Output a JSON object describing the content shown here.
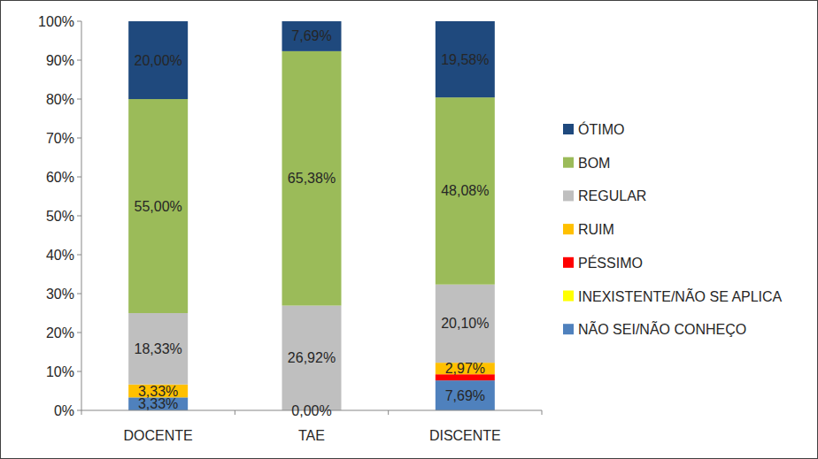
{
  "chart_data": {
    "type": "bar",
    "stacked": true,
    "data_labels": true,
    "legend": "right",
    "grid": false,
    "categories": [
      "DOCENTE",
      "TAE",
      "DISCENTE"
    ],
    "ylim": [
      0,
      100
    ],
    "yticks": [
      {
        "value": 0,
        "label": "0%"
      },
      {
        "value": 10,
        "label": "10%"
      },
      {
        "value": 20,
        "label": "20%"
      },
      {
        "value": 30,
        "label": "30%"
      },
      {
        "value": 40,
        "label": "40%"
      },
      {
        "value": 50,
        "label": "50%"
      },
      {
        "value": 60,
        "label": "60%"
      },
      {
        "value": 70,
        "label": "70%"
      },
      {
        "value": 80,
        "label": "80%"
      },
      {
        "value": 90,
        "label": "90%"
      },
      {
        "value": 100,
        "label": "100%"
      }
    ],
    "series": [
      {
        "name": "ÓTIMO",
        "color": "#1f497d",
        "values": [
          20.0,
          7.69,
          19.58
        ],
        "value_labels": [
          "20,00%",
          "7,69%",
          "19,58%"
        ]
      },
      {
        "name": "BOM",
        "color": "#9bbb59",
        "values": [
          55.0,
          65.38,
          48.08
        ],
        "value_labels": [
          "55,00%",
          "65,38%",
          "48,08%"
        ]
      },
      {
        "name": "REGULAR",
        "color": "#bfbfbf",
        "values": [
          18.33,
          26.92,
          20.1
        ],
        "value_labels": [
          "18,33%",
          "26,92%",
          "20,10%"
        ]
      },
      {
        "name": "RUIM",
        "color": "#ffc000",
        "values": [
          3.33,
          0,
          2.97
        ],
        "value_labels": [
          "3,33%",
          null,
          "2,97%"
        ]
      },
      {
        "name": "PÉSSIMO",
        "color": "#ff0000",
        "values": [
          0,
          0,
          1.58
        ],
        "value_labels": [
          null,
          null,
          null
        ]
      },
      {
        "name": "INEXISTENTE/NÃO SE APLICA",
        "color": "#ffff00",
        "values": [
          0,
          0,
          0
        ],
        "value_labels": [
          null,
          null,
          null
        ]
      },
      {
        "name": "NÃO SEI/NÃO CONHEÇO",
        "color": "#4f81bd",
        "values": [
          3.33,
          0.0,
          7.69
        ],
        "value_labels": [
          "3,33%",
          "0,00%",
          "7,69%"
        ]
      }
    ]
  }
}
